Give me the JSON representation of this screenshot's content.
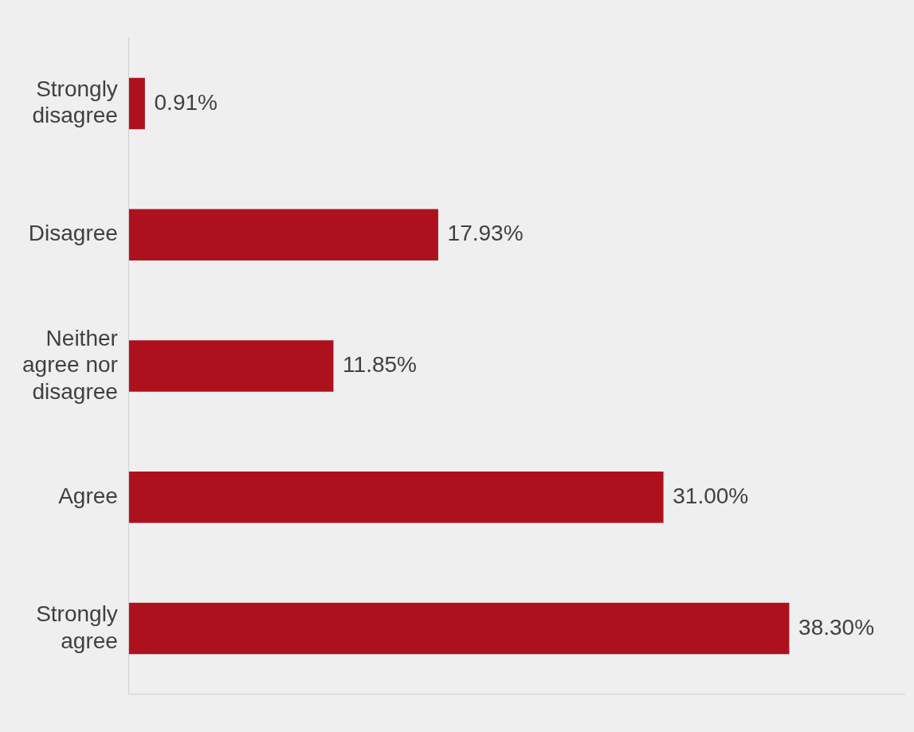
{
  "chart_data": {
    "type": "bar",
    "orientation": "horizontal",
    "categories": [
      "Strongly disagree",
      "Disagree",
      "Neither agree nor disagree",
      "Agree",
      "Strongly agree"
    ],
    "values": [
      0.91,
      17.93,
      11.85,
      31.0,
      38.3
    ],
    "value_labels": [
      "0.91%",
      "17.93%",
      "11.85%",
      "31.00%",
      "38.30%"
    ],
    "color": "#ae111e",
    "xlim": [
      0,
      45
    ],
    "xticks": [],
    "grid": false,
    "data_labels": true,
    "tick_labels": "y"
  }
}
